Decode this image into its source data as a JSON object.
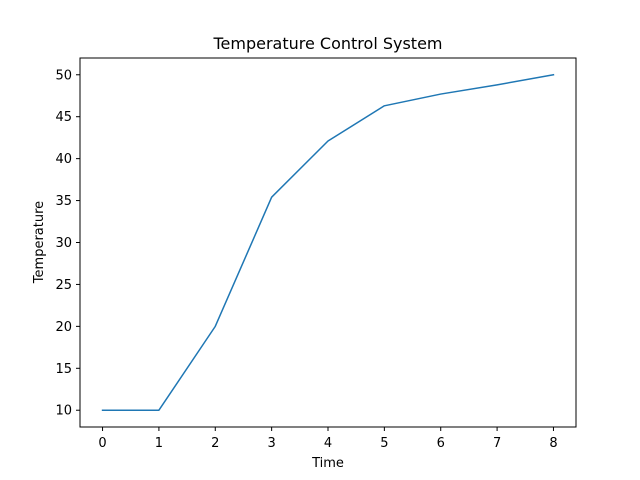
{
  "chart_data": {
    "type": "line",
    "title": "Temperature Control System",
    "xlabel": "Time",
    "ylabel": "Temperature",
    "x": [
      0,
      1,
      2,
      3,
      4,
      5,
      6,
      7,
      8
    ],
    "series": [
      {
        "values": [
          10,
          10,
          20,
          35.4,
          42.1,
          46.3,
          47.7,
          48.8,
          50
        ]
      }
    ],
    "xlim": [
      -0.4,
      8.4
    ],
    "ylim": [
      8,
      52
    ],
    "xticks": [
      0,
      1,
      2,
      3,
      4,
      5,
      6,
      7,
      8
    ],
    "yticks": [
      10,
      15,
      20,
      25,
      30,
      35,
      40,
      45,
      50
    ],
    "grid": false,
    "line_color": "#1f77b4"
  }
}
